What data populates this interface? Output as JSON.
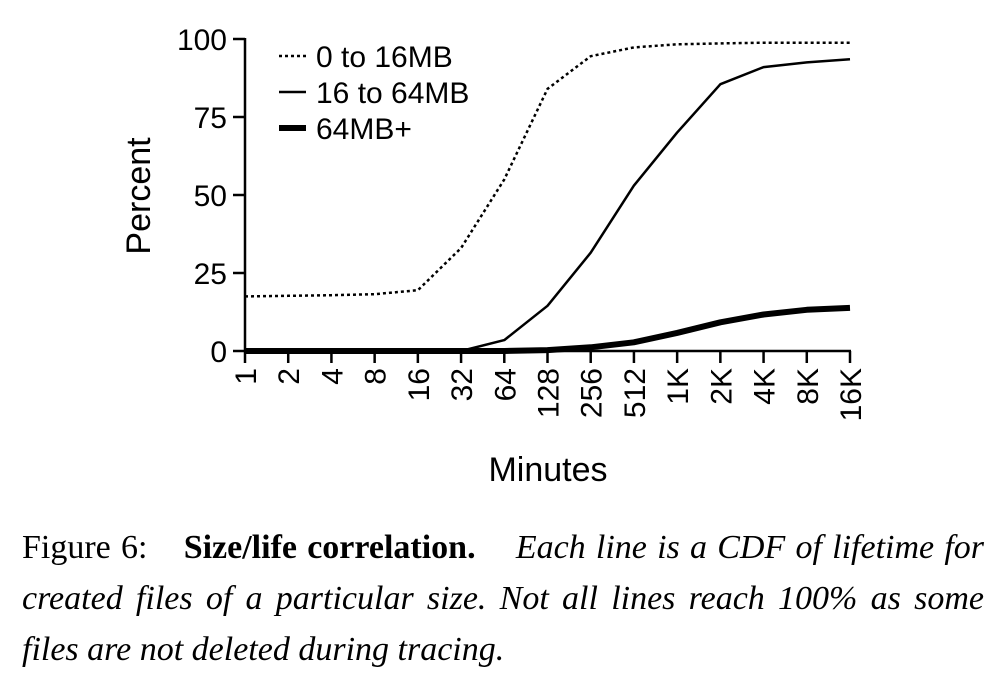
{
  "chart_data": {
    "type": "line",
    "xlabel": "Minutes",
    "ylabel": "Percent",
    "x_scale": "log2",
    "categories": [
      "1",
      "2",
      "4",
      "8",
      "16",
      "32",
      "64",
      "128",
      "256",
      "512",
      "1K",
      "2K",
      "4K",
      "8K",
      "16K"
    ],
    "yticks": [
      "0",
      "25",
      "50",
      "75",
      "100"
    ],
    "ylim": [
      0,
      100
    ],
    "grid": false,
    "legend_position": "top-left",
    "series": [
      {
        "name": "0 to 16MB",
        "style": "dotted",
        "values": [
          17.5,
          17.7,
          17.9,
          18.2,
          19.5,
          33,
          55,
          84,
          94.5,
          97.3,
          98.3,
          98.6,
          98.8,
          98.8,
          98.8
        ]
      },
      {
        "name": "16 to 64MB",
        "style": "solid",
        "values": [
          0,
          0,
          0,
          0,
          0,
          0,
          3.5,
          14.5,
          31.5,
          53,
          70,
          85.5,
          91,
          92.5,
          93.5
        ]
      },
      {
        "name": "64MB+",
        "style": "thick",
        "values": [
          0,
          0,
          0,
          0,
          0,
          0,
          0,
          0.3,
          1.2,
          2.8,
          5.8,
          9.2,
          11.7,
          13.2,
          13.8
        ]
      }
    ]
  },
  "caption": {
    "label": "Figure 6:",
    "title": "Size/life correlation.",
    "body": "Each line is a CDF of lifetime for created files of a particular size. Not all lines reach 100% as some files are not deleted during tracing."
  }
}
